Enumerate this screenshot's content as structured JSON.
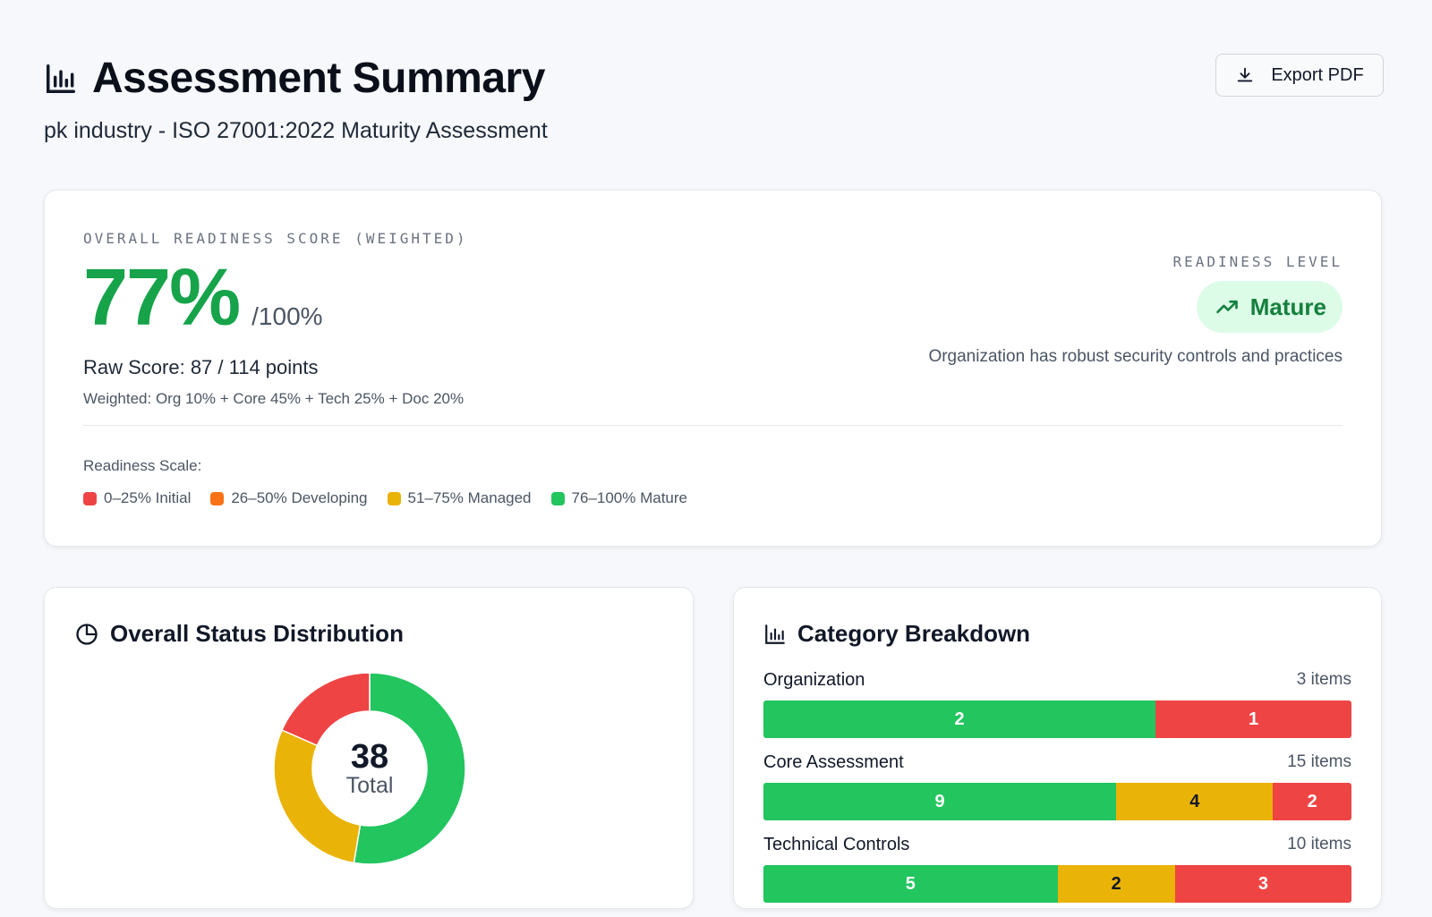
{
  "header": {
    "title": "Assessment Summary",
    "subtitle": "pk industry - ISO 27001:2022 Maturity Assessment",
    "export_label": "Export PDF",
    "title_icon": "bar-chart-icon",
    "export_icon": "download-icon"
  },
  "score": {
    "label": "OVERALL READINESS SCORE (WEIGHTED)",
    "value": "77%",
    "out_of": "/100%",
    "raw": "Raw Score: 87 / 114 points",
    "weights": "Weighted: Org 10% + Core 45% + Tech 25% + Doc 20%",
    "readiness_label": "READINESS LEVEL",
    "readiness_level": "Mature",
    "readiness_desc": "Organization has robust security controls and practices",
    "scale_title": "Readiness Scale:",
    "scale": [
      {
        "label": "0–25% Initial",
        "color": "#ef4444"
      },
      {
        "label": "26–50% Developing",
        "color": "#f97316"
      },
      {
        "label": "51–75% Managed",
        "color": "#eab308"
      },
      {
        "label": "76–100% Mature",
        "color": "#22c55e"
      }
    ]
  },
  "distribution": {
    "title": "Overall Status Distribution",
    "icon": "pie-chart-icon",
    "total": "38",
    "total_label": "Total",
    "segments": [
      {
        "status": "green",
        "value": 20,
        "color": "#22c55e"
      },
      {
        "status": "amber",
        "value": 11,
        "color": "#eab308"
      },
      {
        "status": "red",
        "value": 7,
        "color": "#ef4444"
      }
    ]
  },
  "categories": {
    "title": "Category Breakdown",
    "icon": "bar-chart-icon",
    "items": [
      {
        "name": "Organization",
        "count": "3 items",
        "segments": [
          {
            "value": 2,
            "type": "green"
          },
          {
            "value": 1,
            "type": "red"
          }
        ]
      },
      {
        "name": "Core Assessment",
        "count": "15 items",
        "segments": [
          {
            "value": 9,
            "type": "green"
          },
          {
            "value": 4,
            "type": "amber"
          },
          {
            "value": 2,
            "type": "red"
          }
        ]
      },
      {
        "name": "Technical Controls",
        "count": "10 items",
        "segments": [
          {
            "value": 5,
            "type": "green"
          },
          {
            "value": 2,
            "type": "amber"
          },
          {
            "value": 3,
            "type": "red"
          }
        ]
      }
    ]
  }
}
